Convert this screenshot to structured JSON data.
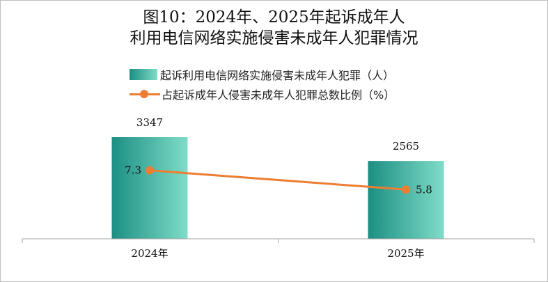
{
  "chart_data": {
    "type": "bar",
    "title": "图10：2024年、2025年起诉成年人",
    "subtitle": "利用电信网络实施侵害未成年人犯罪情况",
    "categories": [
      "2024年",
      "2025年"
    ],
    "series": [
      {
        "name": "起诉利用电信网络实施侵害未成年人犯罪（人）",
        "type": "bar",
        "values": [
          3347,
          2565
        ],
        "value_labels": [
          "3347",
          "2565"
        ],
        "color": "#1c8f83",
        "color_light": "#7fdcc8"
      },
      {
        "name": "占起诉成年人侵害未成年人犯罪总数比例（%）",
        "type": "line",
        "values": [
          7.3,
          5.8
        ],
        "value_labels": [
          "7.3",
          "5.8"
        ],
        "color": "#ed7d31"
      }
    ],
    "legend": "top",
    "grid": false
  }
}
